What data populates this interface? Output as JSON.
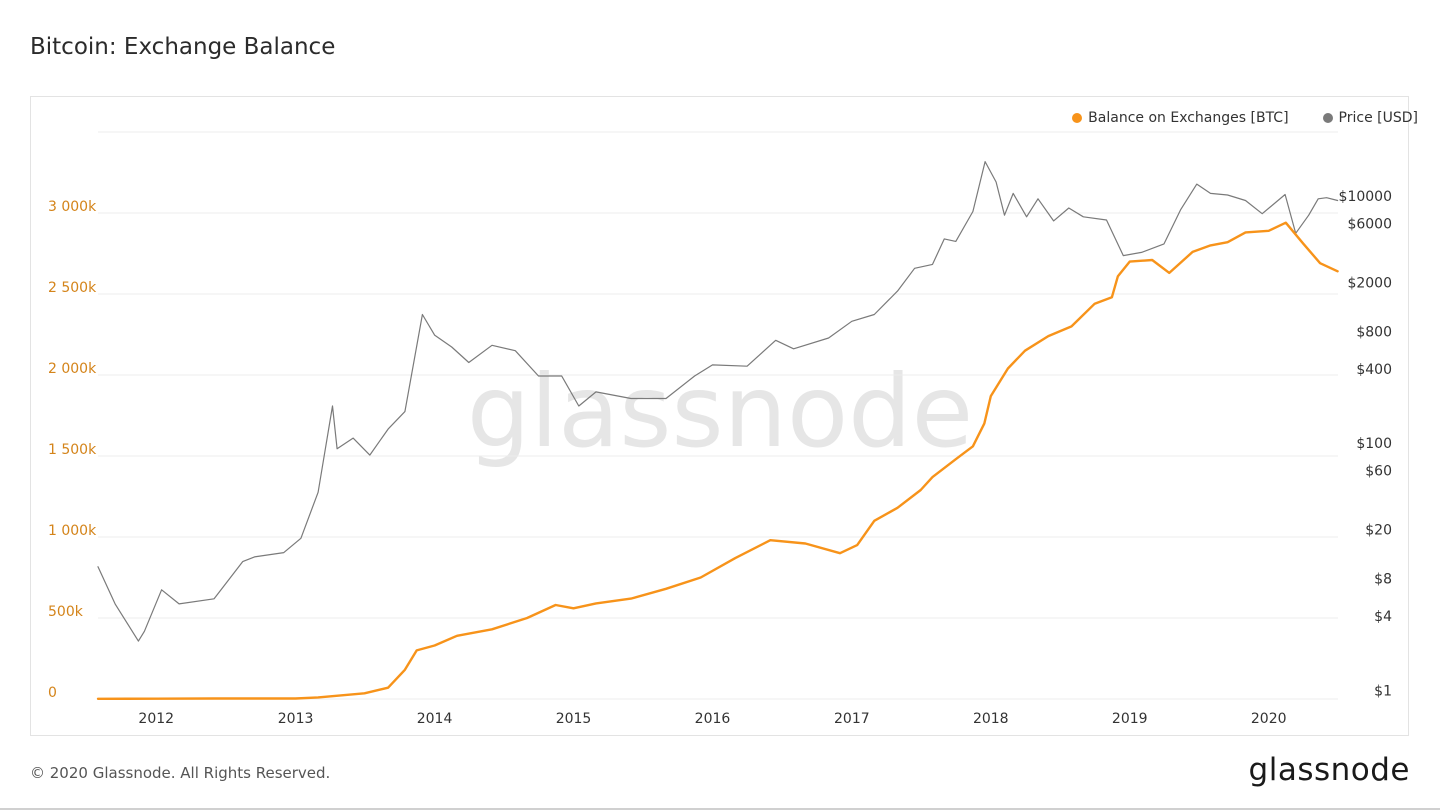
{
  "page": {
    "title": "Bitcoin: Exchange Balance",
    "copyright": "© 2020 Glassnode. All Rights Reserved.",
    "logo_text": "glassnode",
    "watermark_text": "glassnode"
  },
  "legend": {
    "items": [
      {
        "label": "Balance on Exchanges [BTC]",
        "color": "#f7931a"
      },
      {
        "label": "Price [USD]",
        "color": "#7a7a7a"
      }
    ]
  },
  "chart_data": {
    "type": "line",
    "title": "Bitcoin: Exchange Balance",
    "x_axis": {
      "range": [
        "2011-08-01",
        "2020-07-01"
      ],
      "tick_labels": [
        "2012",
        "2013",
        "2014",
        "2015",
        "2016",
        "2017",
        "2018",
        "2019",
        "2020"
      ],
      "tick_dates": [
        "2012-01-01",
        "2013-01-01",
        "2014-01-01",
        "2015-01-01",
        "2016-01-01",
        "2017-01-01",
        "2018-01-01",
        "2019-01-01",
        "2020-01-01"
      ]
    },
    "y_left": {
      "range": [
        0,
        3500000
      ],
      "scale": "linear",
      "tick_values": [
        0,
        500000,
        1000000,
        1500000,
        2000000,
        2500000,
        3000000
      ],
      "tick_labels": [
        "0",
        "500k",
        "1 000k",
        "1 500k",
        "2 000k",
        "2 500k",
        "3 000k"
      ],
      "color": "#d4841a"
    },
    "y_right": {
      "range": [
        0.85,
        33000
      ],
      "scale": "log",
      "tick_values": [
        1,
        4,
        8,
        20,
        60,
        100,
        400,
        800,
        2000,
        6000,
        10000
      ],
      "tick_labels": [
        "$1",
        "$4",
        "$8",
        "$20",
        "$60",
        "$100",
        "$400",
        "$800",
        "$2000",
        "$6000",
        "$10000"
      ]
    },
    "grid": true,
    "legend_position": "top-right",
    "series": [
      {
        "name": "Balance on Exchanges [BTC]",
        "axis": "left",
        "color": "#f7931a",
        "points": [
          [
            "2011-08-01",
            1000
          ],
          [
            "2012-01-01",
            2000
          ],
          [
            "2012-06-01",
            3000
          ],
          [
            "2013-01-01",
            3000
          ],
          [
            "2013-03-01",
            10000
          ],
          [
            "2013-07-01",
            35000
          ],
          [
            "2013-09-01",
            70000
          ],
          [
            "2013-10-15",
            180000
          ],
          [
            "2013-11-15",
            300000
          ],
          [
            "2014-01-01",
            330000
          ],
          [
            "2014-03-01",
            390000
          ],
          [
            "2014-06-01",
            430000
          ],
          [
            "2014-09-01",
            500000
          ],
          [
            "2014-11-15",
            580000
          ],
          [
            "2015-01-01",
            560000
          ],
          [
            "2015-03-01",
            590000
          ],
          [
            "2015-06-01",
            620000
          ],
          [
            "2015-09-01",
            680000
          ],
          [
            "2015-12-01",
            750000
          ],
          [
            "2016-03-01",
            870000
          ],
          [
            "2016-06-01",
            980000
          ],
          [
            "2016-09-01",
            960000
          ],
          [
            "2016-12-01",
            900000
          ],
          [
            "2017-01-15",
            950000
          ],
          [
            "2017-03-01",
            1100000
          ],
          [
            "2017-05-01",
            1180000
          ],
          [
            "2017-07-01",
            1290000
          ],
          [
            "2017-08-01",
            1370000
          ],
          [
            "2017-10-01",
            1480000
          ],
          [
            "2017-11-15",
            1560000
          ],
          [
            "2017-12-15",
            1700000
          ],
          [
            "2018-01-01",
            1870000
          ],
          [
            "2018-02-15",
            2040000
          ],
          [
            "2018-04-01",
            2150000
          ],
          [
            "2018-06-01",
            2240000
          ],
          [
            "2018-08-01",
            2300000
          ],
          [
            "2018-10-01",
            2440000
          ],
          [
            "2018-11-15",
            2480000
          ],
          [
            "2018-12-01",
            2610000
          ],
          [
            "2019-01-01",
            2700000
          ],
          [
            "2019-03-01",
            2710000
          ],
          [
            "2019-04-15",
            2630000
          ],
          [
            "2019-06-15",
            2760000
          ],
          [
            "2019-08-01",
            2800000
          ],
          [
            "2019-09-15",
            2820000
          ],
          [
            "2019-11-01",
            2880000
          ],
          [
            "2020-01-01",
            2890000
          ],
          [
            "2020-02-15",
            2940000
          ],
          [
            "2020-04-01",
            2810000
          ],
          [
            "2020-05-15",
            2690000
          ],
          [
            "2020-06-30",
            2640000
          ]
        ]
      },
      {
        "name": "Price [USD]",
        "axis": "right",
        "color": "#7a7a7a",
        "points": [
          [
            "2011-08-01",
            10
          ],
          [
            "2011-09-15",
            5
          ],
          [
            "2011-11-15",
            2.5
          ],
          [
            "2011-12-01",
            3
          ],
          [
            "2012-01-15",
            6.5
          ],
          [
            "2012-03-01",
            5
          ],
          [
            "2012-06-01",
            5.5
          ],
          [
            "2012-08-15",
            11
          ],
          [
            "2012-09-15",
            12
          ],
          [
            "2012-12-01",
            13
          ],
          [
            "2013-01-15",
            17
          ],
          [
            "2013-03-01",
            40
          ],
          [
            "2013-04-08",
            200
          ],
          [
            "2013-04-20",
            90
          ],
          [
            "2013-06-01",
            110
          ],
          [
            "2013-07-15",
            80
          ],
          [
            "2013-09-01",
            130
          ],
          [
            "2013-10-15",
            180
          ],
          [
            "2013-11-30",
            1100
          ],
          [
            "2014-01-01",
            750
          ],
          [
            "2014-02-15",
            600
          ],
          [
            "2014-04-01",
            450
          ],
          [
            "2014-06-01",
            620
          ],
          [
            "2014-08-01",
            560
          ],
          [
            "2014-10-01",
            350
          ],
          [
            "2014-12-01",
            350
          ],
          [
            "2015-01-15",
            200
          ],
          [
            "2015-03-01",
            260
          ],
          [
            "2015-06-01",
            230
          ],
          [
            "2015-09-01",
            230
          ],
          [
            "2015-11-15",
            350
          ],
          [
            "2016-01-01",
            430
          ],
          [
            "2016-04-01",
            420
          ],
          [
            "2016-06-15",
            680
          ],
          [
            "2016-08-01",
            580
          ],
          [
            "2016-11-01",
            710
          ],
          [
            "2017-01-01",
            970
          ],
          [
            "2017-03-01",
            1100
          ],
          [
            "2017-05-01",
            1700
          ],
          [
            "2017-06-15",
            2600
          ],
          [
            "2017-08-01",
            2800
          ],
          [
            "2017-09-01",
            4500
          ],
          [
            "2017-10-01",
            4300
          ],
          [
            "2017-11-15",
            7500
          ],
          [
            "2017-12-17",
            19000
          ],
          [
            "2018-01-15",
            13000
          ],
          [
            "2018-02-06",
            7000
          ],
          [
            "2018-03-01",
            10500
          ],
          [
            "2018-04-05",
            6800
          ],
          [
            "2018-05-05",
            9500
          ],
          [
            "2018-06-15",
            6300
          ],
          [
            "2018-07-25",
            8000
          ],
          [
            "2018-09-01",
            6800
          ],
          [
            "2018-11-01",
            6400
          ],
          [
            "2018-12-15",
            3300
          ],
          [
            "2019-02-01",
            3500
          ],
          [
            "2019-04-01",
            4100
          ],
          [
            "2019-05-15",
            7800
          ],
          [
            "2019-06-26",
            12500
          ],
          [
            "2019-08-01",
            10500
          ],
          [
            "2019-09-15",
            10200
          ],
          [
            "2019-11-01",
            9200
          ],
          [
            "2019-12-15",
            7200
          ],
          [
            "2020-02-13",
            10300
          ],
          [
            "2020-03-12",
            5000
          ],
          [
            "2020-04-15",
            7000
          ],
          [
            "2020-05-10",
            9500
          ],
          [
            "2020-06-01",
            9700
          ],
          [
            "2020-06-30",
            9200
          ]
        ]
      }
    ]
  }
}
